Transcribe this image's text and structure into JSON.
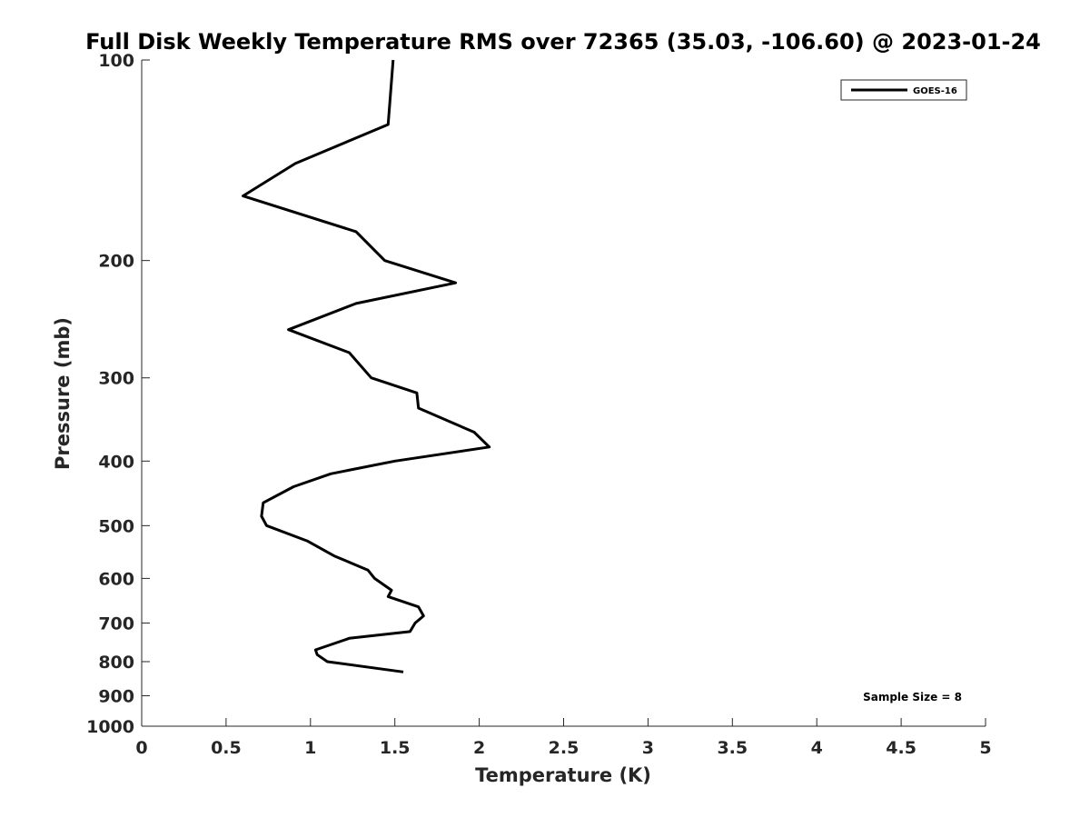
{
  "chart_data": {
    "type": "line",
    "title": "Full Disk Weekly Temperature RMS over 72365 (35.03, -106.60) @ 2023-01-24",
    "xlabel": "Temperature (K)",
    "ylabel": "Pressure (mb)",
    "xlim": [
      0,
      5
    ],
    "ylim": [
      100,
      1000
    ],
    "y_scale": "log",
    "y_reversed": true,
    "x_ticks": [
      "0",
      "0.5",
      "1",
      "1.5",
      "2",
      "2.5",
      "3",
      "3.5",
      "4",
      "4.5",
      "5"
    ],
    "y_ticks": [
      "100",
      "200",
      "300",
      "400",
      "500",
      "600",
      "700",
      "800",
      "900",
      "1000"
    ],
    "grid": false,
    "legend_position": "top-right",
    "series": [
      {
        "name": "GOES-16",
        "color": "#000000",
        "points": [
          {
            "x": 1.49,
            "y": 100
          },
          {
            "x": 1.46,
            "y": 125
          },
          {
            "x": 0.91,
            "y": 143
          },
          {
            "x": 0.6,
            "y": 160
          },
          {
            "x": 1.27,
            "y": 181
          },
          {
            "x": 1.44,
            "y": 200
          },
          {
            "x": 1.86,
            "y": 216
          },
          {
            "x": 1.27,
            "y": 232
          },
          {
            "x": 0.87,
            "y": 254
          },
          {
            "x": 1.23,
            "y": 275
          },
          {
            "x": 1.36,
            "y": 300
          },
          {
            "x": 1.63,
            "y": 316
          },
          {
            "x": 1.64,
            "y": 333
          },
          {
            "x": 1.97,
            "y": 362
          },
          {
            "x": 2.06,
            "y": 381
          },
          {
            "x": 1.5,
            "y": 400
          },
          {
            "x": 1.12,
            "y": 418
          },
          {
            "x": 0.9,
            "y": 437
          },
          {
            "x": 0.72,
            "y": 462
          },
          {
            "x": 0.71,
            "y": 484
          },
          {
            "x": 0.74,
            "y": 500
          },
          {
            "x": 0.98,
            "y": 527
          },
          {
            "x": 1.14,
            "y": 555
          },
          {
            "x": 1.34,
            "y": 583
          },
          {
            "x": 1.38,
            "y": 600
          },
          {
            "x": 1.48,
            "y": 625
          },
          {
            "x": 1.46,
            "y": 639
          },
          {
            "x": 1.64,
            "y": 662
          },
          {
            "x": 1.67,
            "y": 683
          },
          {
            "x": 1.62,
            "y": 700
          },
          {
            "x": 1.59,
            "y": 721
          },
          {
            "x": 1.23,
            "y": 738
          },
          {
            "x": 1.03,
            "y": 768
          },
          {
            "x": 1.04,
            "y": 781
          },
          {
            "x": 1.1,
            "y": 800
          },
          {
            "x": 1.55,
            "y": 829
          }
        ]
      }
    ],
    "annotations": [
      {
        "text": "Sample Size = 8",
        "position": "bottom-right"
      }
    ]
  }
}
